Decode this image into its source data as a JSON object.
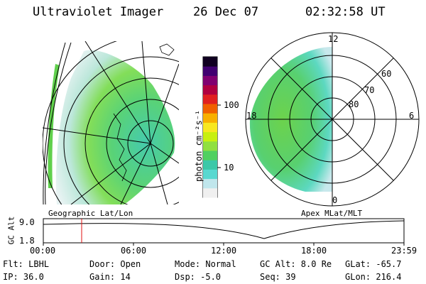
{
  "header": {
    "instrument": "Ultraviolet Imager",
    "date": "26 Dec 07",
    "time": "02:32:58 UT"
  },
  "colorbar": {
    "unit_label": "photon cm⁻²s⁻¹",
    "ticks": [
      "100",
      "10"
    ],
    "colors": [
      "#f0f0f0",
      "#c0e6ec",
      "#58d8d0",
      "#3cc8a8",
      "#50d060",
      "#90e040",
      "#c8f010",
      "#f8e820",
      "#f8b000",
      "#f06000",
      "#e02020",
      "#b00040",
      "#800070",
      "#400070",
      "#100020"
    ]
  },
  "geo_panel": {
    "label": "Geographic Lat/Lon"
  },
  "polar_panel": {
    "label": "Apex MLat/MLT",
    "mlt_labels": [
      "12",
      "18",
      "6",
      "0"
    ],
    "lat_labels": [
      "60",
      "70",
      "80"
    ]
  },
  "alt_plot": {
    "ylabel": "GC Alt",
    "y_ticks": [
      "9.0",
      "1.8"
    ],
    "x_ticks": [
      "00:00",
      "06:00",
      "12:00",
      "18:00",
      "23:59"
    ],
    "marker_color": "#e01010"
  },
  "footer": {
    "filter": "Flt: LBHL",
    "ip": "IP: 36.0",
    "door": "Door: Open",
    "gain": "Gain: 14",
    "mode": "Mode: Normal",
    "dsp": "Dsp:   -5.0",
    "gc_alt": "GC Alt: 8.0 Re",
    "seq": "Seq: 39",
    "glat": "GLat: -65.7",
    "glon": "GLon: 216.4"
  }
}
